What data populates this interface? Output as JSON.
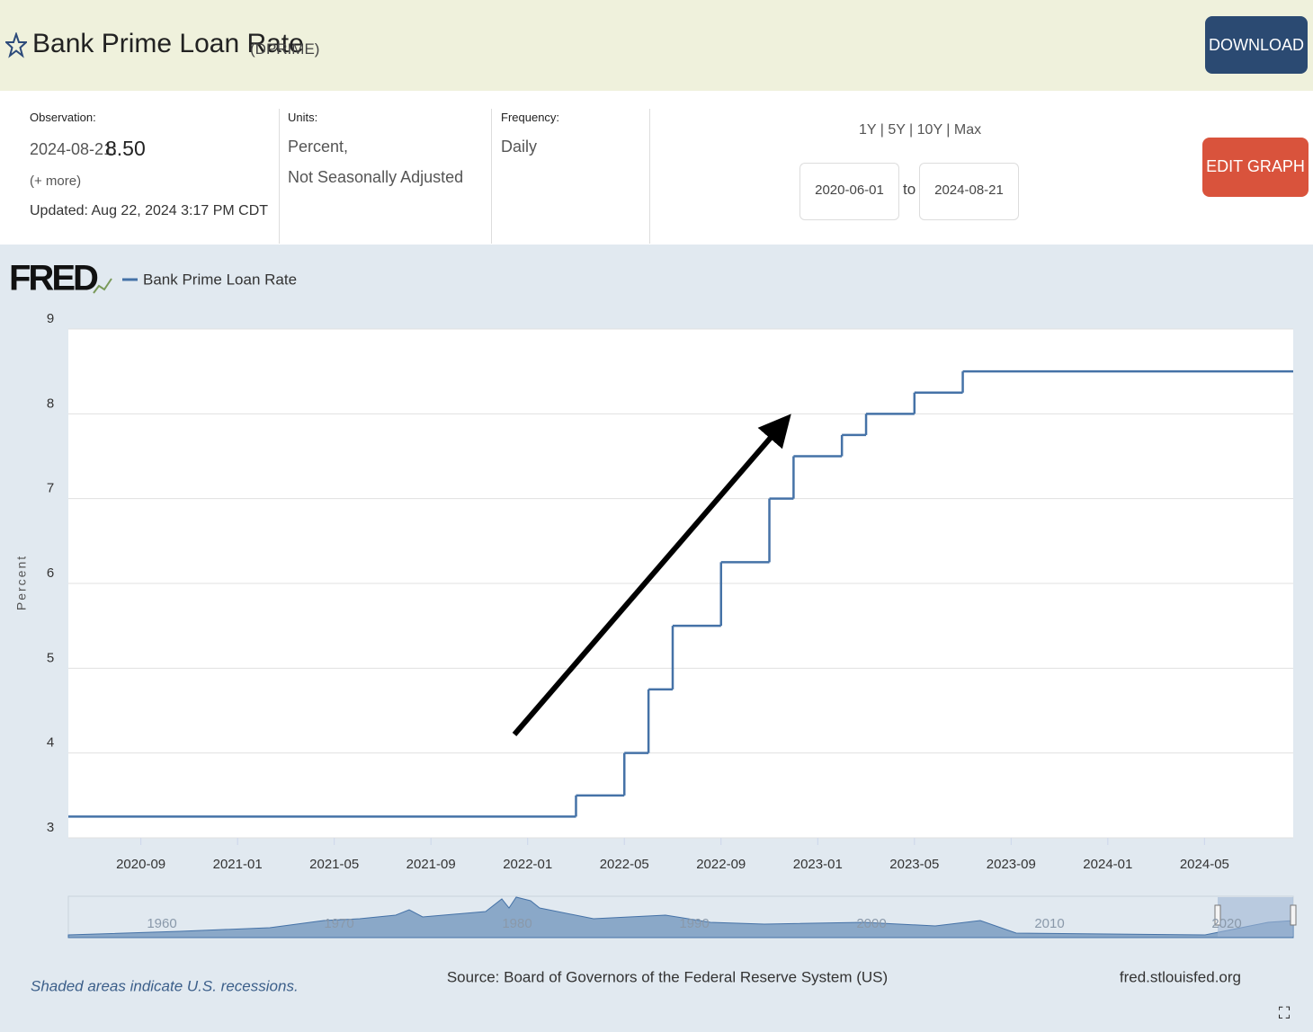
{
  "header": {
    "title": "Bank Prime Loan Rate",
    "series_id": "(DPRIME)",
    "download": "DOWNLOAD",
    "edit_graph": "EDIT GRAPH"
  },
  "info": {
    "observation": {
      "label": "Observation:",
      "date": "2024-08-21:",
      "value": "8.50",
      "more": "(+ more)",
      "updated": "Updated: Aug 22, 2024 3:17 PM CDT"
    },
    "units": {
      "label": "Units:",
      "lines": [
        "Percent,",
        "Not Seasonally Adjusted"
      ]
    },
    "frequency": {
      "label": "Frequency:",
      "value": "Daily"
    },
    "ranges": [
      "1Y",
      "5Y",
      "10Y",
      "Max"
    ],
    "date_from": "2020-06-01",
    "to": "to",
    "date_to": "2024-08-21"
  },
  "logo": "FRED",
  "chart_data": {
    "type": "line",
    "step": true,
    "ylabel": "Percent",
    "x": [
      "2020-06",
      "2022-03",
      "2022-05",
      "2022-06",
      "2022-07",
      "2022-09",
      "2022-11",
      "2022-12",
      "2023-02",
      "2023-03",
      "2023-05",
      "2023-07",
      "2024-08"
    ],
    "series": [
      {
        "name": "Bank Prime Loan Rate",
        "color": "#4572a7",
        "values": [
          3.25,
          3.5,
          4,
          4.75,
          5.5,
          6.25,
          7,
          7.5,
          7.75,
          8,
          8.25,
          8.5,
          8.5
        ]
      }
    ],
    "xlim": [
      "2020-06",
      "2024-08"
    ],
    "xticks": [
      "2020-09",
      "2021-01",
      "2021-05",
      "2021-09",
      "2022-01",
      "2022-05",
      "2022-09",
      "2023-01",
      "2023-05",
      "2023-09",
      "2024-01",
      "2024-05"
    ],
    "ylim": [
      3,
      9
    ],
    "yticks": [
      3,
      4,
      5,
      6,
      7,
      8,
      9
    ],
    "grid": true
  },
  "navigator": {
    "labels": [
      "1960",
      "1970",
      "1980",
      "1990",
      "2000",
      "2010",
      "2020"
    ]
  },
  "footer": {
    "recessions": "Shaded areas indicate U.S. recessions.",
    "source": "Source: Board of Governors of the Federal Reserve System (US)",
    "site": "fred.stlouisfed.org"
  }
}
